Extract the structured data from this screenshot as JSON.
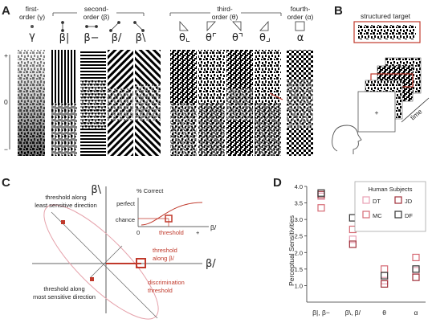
{
  "panelA": {
    "label": "A",
    "first_order": {
      "title1": "first-",
      "title2": "order (γ)",
      "symbol": "γ"
    },
    "second_order": {
      "title1": "second-",
      "title2": "order (β)",
      "symbols": [
        "β|",
        "β−",
        "β/",
        "β\\"
      ]
    },
    "third_order": {
      "title1": "third-",
      "title2": "order (θ)",
      "symbols": [
        "θ⌞",
        "θ⌜",
        "θ⌝",
        "θ⌟"
      ]
    },
    "fourth_order": {
      "title1": "fourth-",
      "title2": "order (α)",
      "symbol": "α"
    },
    "scale_top": "+",
    "scale_mid": "0",
    "scale_bottom": "−"
  },
  "panelB": {
    "label": "B",
    "target_title": "structured target",
    "time_label": "time",
    "fixation": "+"
  },
  "panelC": {
    "label": "C",
    "axis_y": "β\\",
    "axis_x": "β/",
    "least_sensitive_1": "threshold along",
    "least_sensitive_2": "least sensitive direction",
    "most_sensitive_1": "threshold along",
    "most_sensitive_2": "most sensitive direction",
    "along_beta_1": "threshold",
    "along_beta_2": "along β/",
    "discrim_1": "discrimination",
    "discrim_2": "threshold",
    "inset": {
      "title": "% Correct",
      "perfect": "perfect",
      "chance": "chance",
      "x0": "0",
      "xthreshold": "threshold",
      "xplus": "+",
      "xaxis": "β/"
    }
  },
  "panelD": {
    "label": "D",
    "ylabel": "Perceptual Sensitivities",
    "legend_title": "Human Subjects",
    "subjects": [
      {
        "name": "DT",
        "color": "#e8a0b4"
      },
      {
        "name": "JD",
        "color": "#a0303a"
      },
      {
        "name": "MC",
        "color": "#d66a74"
      },
      {
        "name": "DF",
        "color": "#333333"
      }
    ],
    "categories": [
      "β|, β−",
      "β\\, β/",
      "θ",
      "α"
    ]
  },
  "chart_data": {
    "type": "scatter",
    "title": "",
    "xlabel": "",
    "ylabel": "Perceptual Sensitivities",
    "ylim": [
      0.5,
      4.0
    ],
    "yticks": [
      "1.0",
      "1.5",
      "2.0",
      "2.5",
      "3.0",
      "3.5",
      "4.0"
    ],
    "categories": [
      "β|, β−",
      "β\\, β/",
      "θ",
      "α"
    ],
    "series": [
      {
        "name": "DT",
        "values": [
          3.7,
          2.4,
          1.15,
          1.45
        ]
      },
      {
        "name": "JD",
        "values": [
          3.75,
          2.25,
          1.05,
          1.25
        ]
      },
      {
        "name": "MC",
        "values": [
          3.35,
          2.7,
          1.5,
          1.85
        ]
      },
      {
        "name": "DF",
        "values": [
          3.8,
          3.05,
          1.3,
          1.5
        ]
      }
    ]
  }
}
